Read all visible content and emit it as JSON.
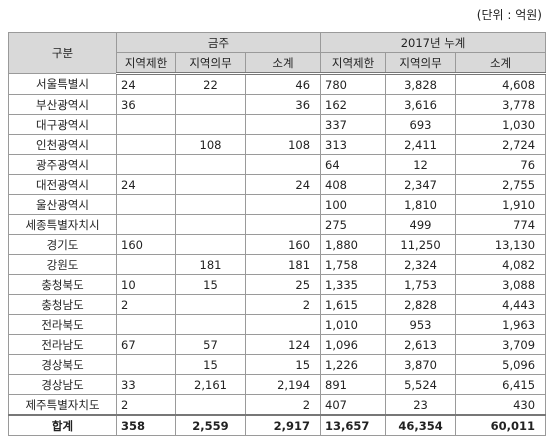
{
  "header": {
    "unit": "(단위 : 억원)"
  },
  "table": {
    "corner": "구분",
    "groups": [
      "금주",
      "2017년 누계"
    ],
    "subheaders": [
      "지역제한",
      "지역의무",
      "소계",
      "지역제한",
      "지역의무",
      "소계"
    ],
    "rows": [
      {
        "label": "서울특별시",
        "cells": [
          "24",
          "22",
          "46",
          "780",
          "3,828",
          "4,608"
        ]
      },
      {
        "label": "부산광역시",
        "cells": [
          "36",
          null,
          "36",
          "162",
          "3,616",
          "3,778"
        ]
      },
      {
        "label": "대구광역시",
        "cells": [
          null,
          null,
          null,
          "337",
          "693",
          "1,030"
        ]
      },
      {
        "label": "인천광역시",
        "cells": [
          null,
          "108",
          "108",
          "313",
          "2,411",
          "2,724"
        ]
      },
      {
        "label": "광주광역시",
        "cells": [
          null,
          null,
          null,
          "64",
          "12",
          "76"
        ]
      },
      {
        "label": "대전광역시",
        "cells": [
          "24",
          null,
          "24",
          "408",
          "2,347",
          "2,755"
        ]
      },
      {
        "label": "울산광역시",
        "cells": [
          null,
          null,
          null,
          "100",
          "1,810",
          "1,910"
        ]
      },
      {
        "label": "세종특별자치시",
        "cells": [
          null,
          null,
          null,
          "275",
          "499",
          "774"
        ]
      },
      {
        "label": "경기도",
        "cells": [
          "160",
          null,
          "160",
          "1,880",
          "11,250",
          "13,130"
        ]
      },
      {
        "label": "강원도",
        "cells": [
          null,
          "181",
          "181",
          "1,758",
          "2,324",
          "4,082"
        ]
      },
      {
        "label": "충청북도",
        "cells": [
          "10",
          "15",
          "25",
          "1,335",
          "1,753",
          "3,088"
        ]
      },
      {
        "label": "충청남도",
        "cells": [
          "2",
          null,
          "2",
          "1,615",
          "2,828",
          "4,443"
        ]
      },
      {
        "label": "전라북도",
        "cells": [
          null,
          null,
          null,
          "1,010",
          "953",
          "1,963"
        ]
      },
      {
        "label": "전라남도",
        "cells": [
          "67",
          "57",
          "124",
          "1,096",
          "2,613",
          "3,709"
        ]
      },
      {
        "label": "경상북도",
        "cells": [
          null,
          "15",
          "15",
          "1,226",
          "3,870",
          "5,096"
        ]
      },
      {
        "label": "경상남도",
        "cells": [
          "33",
          "2,161",
          "2,194",
          "891",
          "5,524",
          "6,415"
        ]
      },
      {
        "label": "제주특별자치도",
        "cells": [
          "2",
          null,
          "2",
          "407",
          "23",
          "430"
        ]
      },
      {
        "label": "합계",
        "cells": [
          "358",
          "2,559",
          "2,917",
          "13,657",
          "46,354",
          "60,011"
        ]
      }
    ]
  }
}
